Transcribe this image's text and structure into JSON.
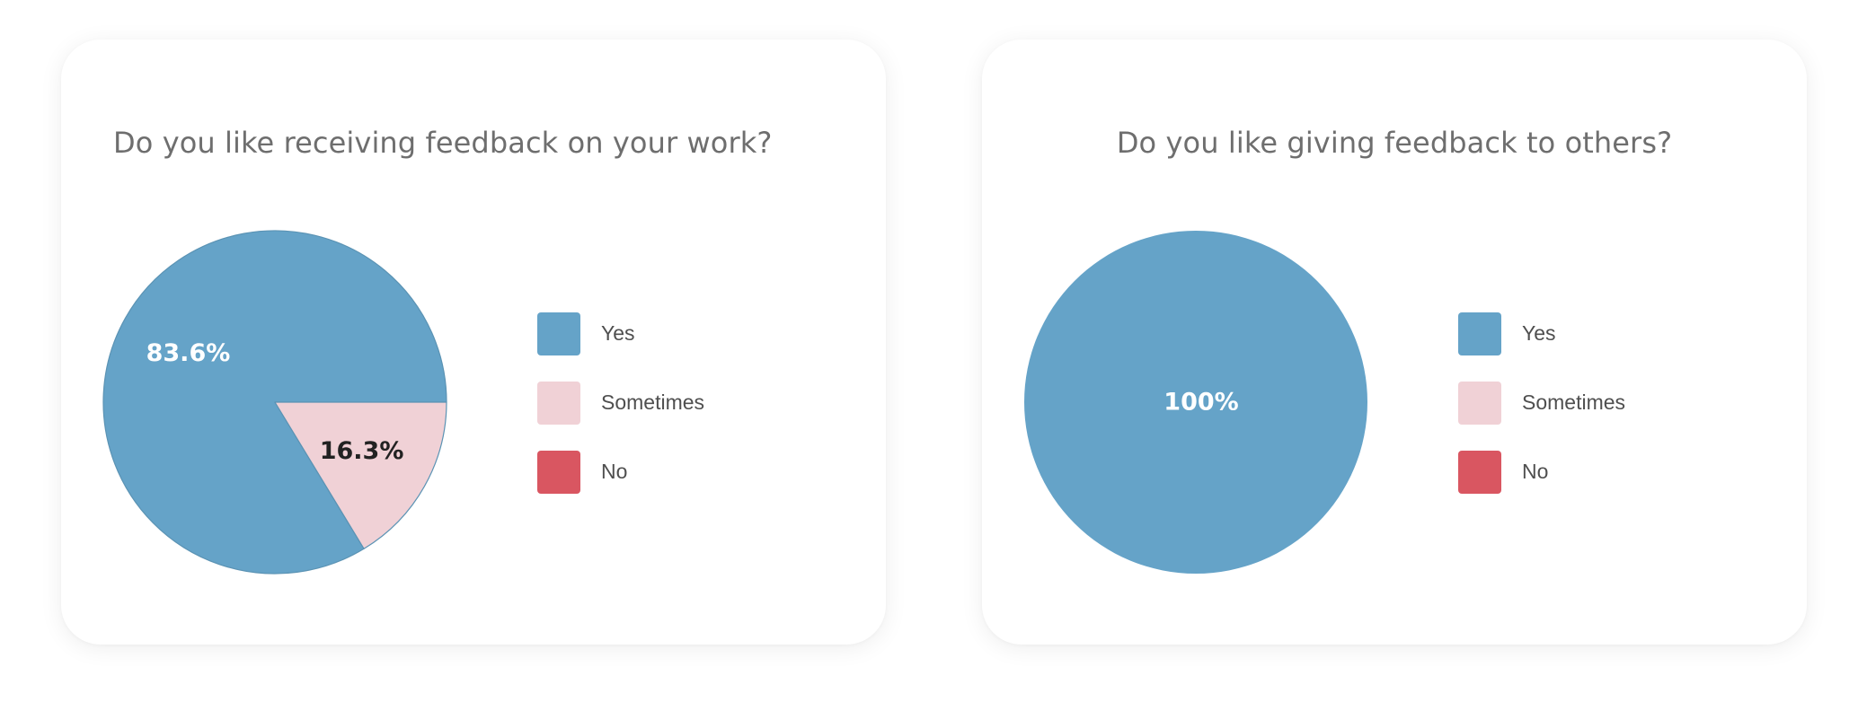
{
  "chart_data": [
    {
      "type": "pie",
      "title": "Do you like receiving feedback on your work?",
      "categories": [
        "Yes",
        "Sometimes",
        "No"
      ],
      "values": [
        83.6,
        16.3,
        0
      ],
      "labels": [
        "83.6%",
        "16.3%",
        ""
      ],
      "colors": [
        "#65a3c8",
        "#f0d1d6",
        "#d95661"
      ],
      "label_colors": [
        "#ffffff",
        "#222222",
        "#ffffff"
      ],
      "legend": "right"
    },
    {
      "type": "pie",
      "title": "Do you like giving feedback to others?",
      "categories": [
        "Yes",
        "Sometimes",
        "No"
      ],
      "values": [
        100,
        0,
        0
      ],
      "labels": [
        "100%",
        "",
        ""
      ],
      "colors": [
        "#65a3c8",
        "#f0d1d6",
        "#d95661"
      ],
      "label_colors": [
        "#ffffff",
        "#222222",
        "#ffffff"
      ],
      "legend": "right"
    }
  ]
}
